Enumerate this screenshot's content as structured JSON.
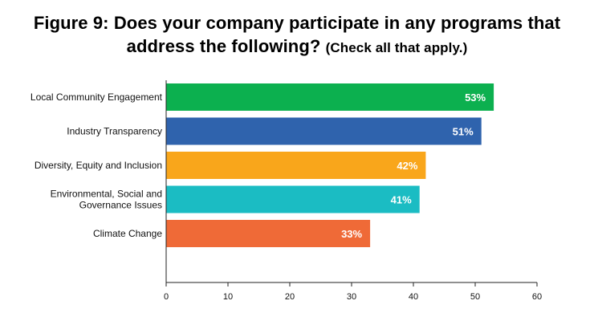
{
  "title_line1": "Figure 9:  Does your company participate in any programs that",
  "title_line2": "address the following?",
  "subtitle": "(Check all that apply.)",
  "chart_data": {
    "type": "bar",
    "orientation": "horizontal",
    "categories": [
      [
        "Local Community Engagement"
      ],
      [
        "Industry Transparency"
      ],
      [
        "Diversity, Equity and Inclusion"
      ],
      [
        "Environmental, Social and",
        "Governance Issues"
      ],
      [
        "Climate Change"
      ]
    ],
    "values": [
      53,
      51,
      42,
      41,
      33
    ],
    "value_labels": [
      "53%",
      "51%",
      "42%",
      "41%",
      "33%"
    ],
    "colors": [
      "#0cb04f",
      "#2f63ad",
      "#f9a61b",
      "#1bbcc3",
      "#ef6a37"
    ],
    "xlim": [
      0,
      60
    ],
    "xticks": [
      0,
      10,
      20,
      30,
      40,
      50,
      60
    ],
    "grid": false,
    "legend": "none"
  }
}
